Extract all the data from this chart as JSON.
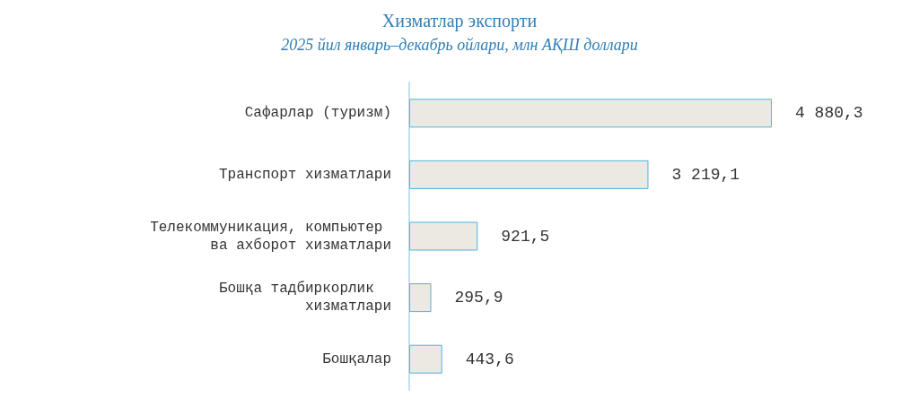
{
  "chart_data": {
    "type": "bar",
    "orientation": "horizontal",
    "title": "Хизматлар экспорти",
    "subtitle": "2025 йил январь–декабрь ойлари, млн АҚШ доллари",
    "categories": [
      "Сафарлар (туризм)",
      "Транспорт хизматлари",
      "Телекоммуникация, компьютер ва ахборот хизматлари",
      "Бошқа тадбиркорлик  хизматлари",
      "Бошқалар"
    ],
    "values": [
      4880.3,
      3219.1,
      921.5,
      295.9,
      443.6
    ],
    "value_labels": [
      "4 880,3",
      "3 219,1",
      "921,5",
      "295,9",
      "443,6"
    ],
    "color": "#ebe9e1",
    "tick_labels": "y"
  }
}
